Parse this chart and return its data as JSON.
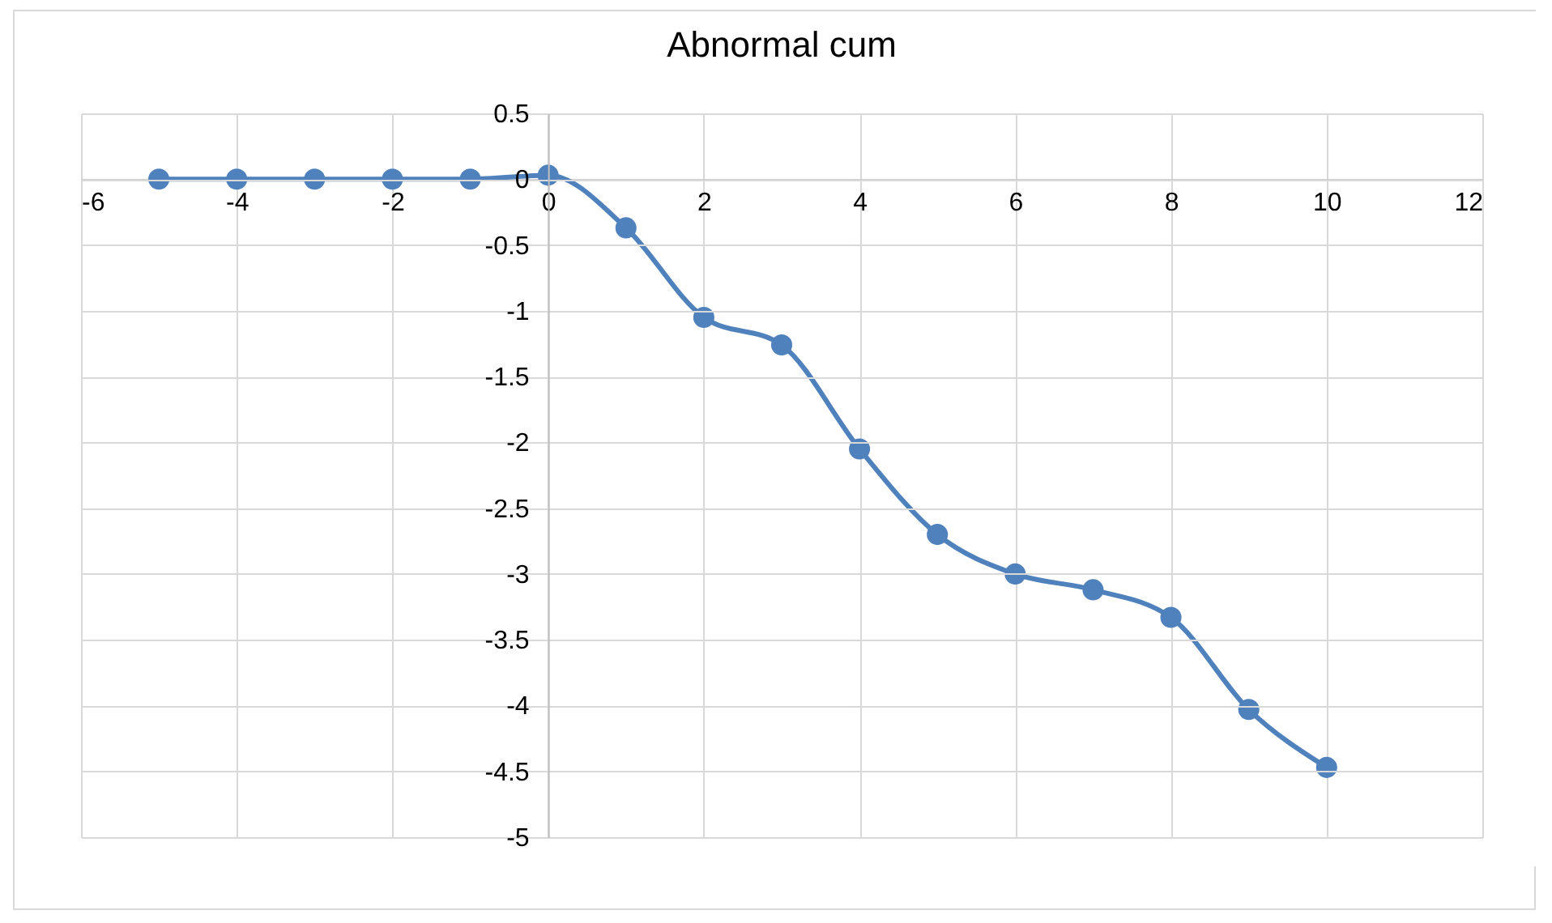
{
  "chart_data": {
    "type": "line",
    "title": "Abnormal cum",
    "x": [
      -5,
      -4,
      -3,
      -2,
      -1,
      0,
      1,
      2,
      3,
      4,
      5,
      6,
      7,
      8,
      9,
      10
    ],
    "series": [
      {
        "color": "#4f81bd",
        "values": [
          0,
          0,
          0,
          0,
          0,
          0.03,
          -0.37,
          -1.05,
          -1.26,
          -2.05,
          -2.7,
          -3.0,
          -3.12,
          -3.33,
          -4.03,
          -4.47
        ]
      }
    ],
    "xlim": [
      -6,
      12
    ],
    "xticks": [
      -6,
      -4,
      -2,
      0,
      2,
      4,
      6,
      8,
      10,
      12
    ],
    "ylim": [
      -5,
      0.5
    ],
    "yticks": [
      -5,
      -4.5,
      -4,
      -3.5,
      -3,
      -2.5,
      -2,
      -1.5,
      -1,
      -0.5,
      0,
      0.5
    ],
    "grid": true,
    "marker": "circle",
    "line_style": "solid"
  }
}
